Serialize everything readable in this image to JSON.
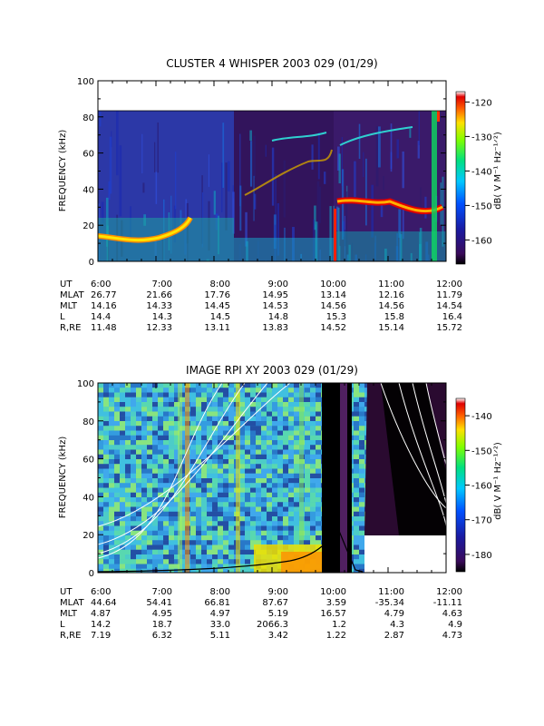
{
  "chart_data": [
    {
      "type": "heatmap",
      "title": "CLUSTER 4 WHISPER 2003 029 (01/29)",
      "ylabel": "FREQUENCY (kHz)",
      "ylim": [
        0,
        100
      ],
      "y_ticks": [
        "0",
        "20",
        "40",
        "60",
        "80",
        "100"
      ],
      "x_ticks": [
        "6:00",
        "7:00",
        "8:00",
        "9:00",
        "10:00",
        "11:00",
        "12:00"
      ],
      "xlim_ut_hours": [
        6,
        12
      ],
      "colorbar": {
        "label": "dB( V M⁻¹ Hz⁻¹ᐟ²)",
        "ticks": [
          "-120",
          "-130",
          "-140",
          "-150",
          "-160"
        ],
        "range": [
          -167,
          -117
        ],
        "colorscale": "rainbow (dark purple = low, white = high)"
      },
      "ephemeris": {
        "rows": [
          {
            "label": "UT",
            "values": [
              "6:00",
              "7:00",
              "8:00",
              "9:00",
              "10:00",
              "11:00",
              "12:00"
            ]
          },
          {
            "label": "MLAT",
            "values": [
              "26.77",
              "21.66",
              "17.76",
              "14.95",
              "13.14",
              "12.16",
              "11.79"
            ]
          },
          {
            "label": "MLT",
            "values": [
              "14.16",
              "14.33",
              "14.45",
              "14.53",
              "14.56",
              "14.56",
              "14.54"
            ]
          },
          {
            "label": "L",
            "values": [
              "14.4",
              "14.3",
              "14.5",
              "14.8",
              "15.3",
              "15.8",
              "16.4"
            ]
          },
          {
            "label": "R,RE",
            "values": [
              "11.48",
              "12.33",
              "13.11",
              "13.83",
              "14.52",
              "15.14",
              "15.72"
            ]
          }
        ]
      },
      "data_notes": "Frequency range covered up to 80 kHz; band 80-100 kHz blank. Intense emission near 13 kHz (6:00-7:00) and near 30 kHz (10:00-12:00)."
    },
    {
      "type": "heatmap",
      "title": "IMAGE RPI XY 2003 029 (01/29)",
      "ylabel": "FREQUENCY (kHz)",
      "ylim": [
        0,
        100
      ],
      "y_ticks": [
        "0",
        "20",
        "40",
        "60",
        "80",
        "100"
      ],
      "x_ticks": [
        "6:00",
        "7:00",
        "8:00",
        "9:00",
        "10:00",
        "11:00",
        "12:00"
      ],
      "xlim_ut_hours": [
        6,
        12
      ],
      "colorbar": {
        "label": "dB( V M⁻¹ Hz⁻¹ᐟ²)",
        "ticks": [
          "-140",
          "-150",
          "-160",
          "-170",
          "-180"
        ],
        "range": [
          -185,
          -135
        ],
        "colorscale": "rainbow (black = low, white = high)"
      },
      "ephemeris": {
        "rows": [
          {
            "label": "UT",
            "values": [
              "6:00",
              "7:00",
              "8:00",
              "9:00",
              "10:00",
              "11:00",
              "12:00"
            ]
          },
          {
            "label": "MLAT",
            "values": [
              "44.64",
              "54.41",
              "66.81",
              "87.67",
              "3.59",
              "-35.34",
              "-11.11"
            ]
          },
          {
            "label": "MLT",
            "values": [
              "4.87",
              "4.95",
              "4.97",
              "5.19",
              "16.57",
              "4.79",
              "4.63"
            ]
          },
          {
            "label": "L",
            "values": [
              "14.2",
              "18.7",
              "33.0",
              "2066.3",
              "1.2",
              "4.3",
              "4.9"
            ]
          },
          {
            "label": "R,RE",
            "values": [
              "7.19",
              "6.32",
              "5.11",
              "3.42",
              "1.22",
              "2.87",
              "4.73"
            ]
          }
        ]
      },
      "data_notes": "White overlay curves rising toward 10:00 and falling after; black curve peaks ~25 kHz at 10:10. White blank region 10:30-12:00 below 20 kHz."
    }
  ]
}
